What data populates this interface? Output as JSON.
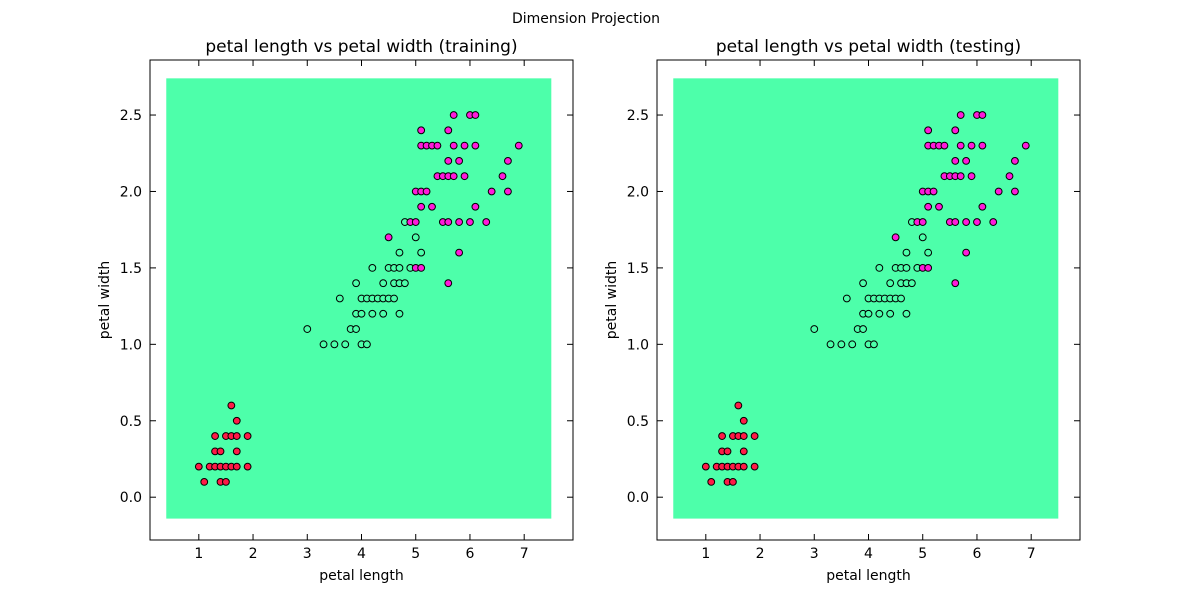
{
  "figure": {
    "title": "Dimension Projection",
    "background_color": "#ffffff",
    "region_color": "#4dffaa"
  },
  "class_colors": {
    "setosa": "#ff1a47",
    "versicolor": "#4dffaa",
    "virginica": "#ff1adb"
  },
  "chart_data": [
    {
      "type": "scatter",
      "title": "petal length vs  petal width (training)",
      "xlabel": "petal length",
      "ylabel": "petal width",
      "xlim": [
        0.1,
        7.9
      ],
      "ylim": [
        -0.28,
        2.86
      ],
      "xticks": [
        1,
        2,
        3,
        4,
        5,
        6,
        7
      ],
      "yticks": [
        0.0,
        0.5,
        1.0,
        1.5,
        2.0,
        2.5
      ],
      "xtick_labels": [
        "1",
        "2",
        "3",
        "4",
        "5",
        "6",
        "7"
      ],
      "ytick_labels": [
        "0.0",
        "0.5",
        "1.0",
        "1.5",
        "2.0",
        "2.5"
      ],
      "grid": false,
      "decision_region": {
        "x": [
          0.4,
          7.5
        ],
        "y": [
          -0.14,
          2.74
        ],
        "class": "versicolor"
      },
      "series": [
        {
          "class": "setosa",
          "points": [
            [
              1.0,
              0.2
            ],
            [
              1.1,
              0.1
            ],
            [
              1.2,
              0.2
            ],
            [
              1.3,
              0.2
            ],
            [
              1.3,
              0.3
            ],
            [
              1.3,
              0.4
            ],
            [
              1.4,
              0.1
            ],
            [
              1.4,
              0.2
            ],
            [
              1.4,
              0.3
            ],
            [
              1.5,
              0.1
            ],
            [
              1.5,
              0.2
            ],
            [
              1.5,
              0.4
            ],
            [
              1.6,
              0.2
            ],
            [
              1.6,
              0.4
            ],
            [
              1.6,
              0.6
            ],
            [
              1.7,
              0.2
            ],
            [
              1.7,
              0.3
            ],
            [
              1.7,
              0.4
            ],
            [
              1.7,
              0.5
            ],
            [
              1.9,
              0.2
            ],
            [
              1.9,
              0.4
            ]
          ]
        },
        {
          "class": "versicolor",
          "points": [
            [
              3.0,
              1.1
            ],
            [
              3.3,
              1.0
            ],
            [
              3.5,
              1.0
            ],
            [
              3.6,
              1.3
            ],
            [
              3.7,
              1.0
            ],
            [
              3.8,
              1.1
            ],
            [
              3.9,
              1.1
            ],
            [
              3.9,
              1.2
            ],
            [
              3.9,
              1.4
            ],
            [
              4.0,
              1.0
            ],
            [
              4.0,
              1.2
            ],
            [
              4.0,
              1.3
            ],
            [
              4.1,
              1.0
            ],
            [
              4.1,
              1.3
            ],
            [
              4.2,
              1.2
            ],
            [
              4.2,
              1.3
            ],
            [
              4.2,
              1.5
            ],
            [
              4.3,
              1.3
            ],
            [
              4.4,
              1.2
            ],
            [
              4.4,
              1.3
            ],
            [
              4.4,
              1.4
            ],
            [
              4.5,
              1.3
            ],
            [
              4.5,
              1.5
            ],
            [
              4.6,
              1.3
            ],
            [
              4.6,
              1.4
            ],
            [
              4.6,
              1.5
            ],
            [
              4.7,
              1.2
            ],
            [
              4.7,
              1.4
            ],
            [
              4.7,
              1.5
            ],
            [
              4.7,
              1.6
            ],
            [
              4.8,
              1.4
            ],
            [
              4.8,
              1.8
            ],
            [
              4.9,
              1.5
            ],
            [
              5.0,
              1.7
            ],
            [
              5.1,
              1.6
            ]
          ]
        },
        {
          "class": "virginica",
          "points": [
            [
              4.5,
              1.7
            ],
            [
              4.9,
              1.8
            ],
            [
              5.0,
              1.5
            ],
            [
              5.0,
              1.8
            ],
            [
              5.0,
              2.0
            ],
            [
              5.1,
              1.5
            ],
            [
              5.1,
              1.9
            ],
            [
              5.1,
              2.0
            ],
            [
              5.1,
              2.3
            ],
            [
              5.1,
              2.4
            ],
            [
              5.2,
              2.0
            ],
            [
              5.2,
              2.3
            ],
            [
              5.3,
              1.9
            ],
            [
              5.3,
              2.3
            ],
            [
              5.4,
              2.1
            ],
            [
              5.4,
              2.3
            ],
            [
              5.5,
              1.8
            ],
            [
              5.5,
              2.1
            ],
            [
              5.6,
              1.4
            ],
            [
              5.6,
              1.8
            ],
            [
              5.6,
              2.1
            ],
            [
              5.6,
              2.2
            ],
            [
              5.6,
              2.4
            ],
            [
              5.7,
              2.1
            ],
            [
              5.7,
              2.3
            ],
            [
              5.7,
              2.5
            ],
            [
              5.8,
              1.6
            ],
            [
              5.8,
              1.8
            ],
            [
              5.8,
              2.2
            ],
            [
              5.9,
              2.1
            ],
            [
              5.9,
              2.3
            ],
            [
              6.0,
              1.8
            ],
            [
              6.0,
              2.5
            ],
            [
              6.1,
              1.9
            ],
            [
              6.1,
              2.3
            ],
            [
              6.1,
              2.5
            ],
            [
              6.3,
              1.8
            ],
            [
              6.4,
              2.0
            ],
            [
              6.6,
              2.1
            ],
            [
              6.7,
              2.0
            ],
            [
              6.7,
              2.2
            ],
            [
              6.9,
              2.3
            ]
          ]
        }
      ]
    },
    {
      "type": "scatter",
      "title": "petal length vs  petal width (testing)",
      "xlabel": "petal length",
      "ylabel": "petal width",
      "xlim": [
        0.1,
        7.9
      ],
      "ylim": [
        -0.28,
        2.86
      ],
      "xticks": [
        1,
        2,
        3,
        4,
        5,
        6,
        7
      ],
      "yticks": [
        0.0,
        0.5,
        1.0,
        1.5,
        2.0,
        2.5
      ],
      "xtick_labels": [
        "1",
        "2",
        "3",
        "4",
        "5",
        "6",
        "7"
      ],
      "ytick_labels": [
        "0.0",
        "0.5",
        "1.0",
        "1.5",
        "2.0",
        "2.5"
      ],
      "grid": false,
      "decision_region": {
        "x": [
          0.4,
          7.5
        ],
        "y": [
          -0.14,
          2.74
        ],
        "class": "versicolor"
      },
      "series": [
        {
          "class": "setosa",
          "points": [
            [
              1.0,
              0.2
            ],
            [
              1.1,
              0.1
            ],
            [
              1.2,
              0.2
            ],
            [
              1.3,
              0.2
            ],
            [
              1.3,
              0.3
            ],
            [
              1.3,
              0.4
            ],
            [
              1.4,
              0.1
            ],
            [
              1.4,
              0.2
            ],
            [
              1.4,
              0.3
            ],
            [
              1.5,
              0.1
            ],
            [
              1.5,
              0.2
            ],
            [
              1.5,
              0.4
            ],
            [
              1.6,
              0.2
            ],
            [
              1.6,
              0.4
            ],
            [
              1.6,
              0.6
            ],
            [
              1.7,
              0.2
            ],
            [
              1.7,
              0.3
            ],
            [
              1.7,
              0.4
            ],
            [
              1.7,
              0.5
            ],
            [
              1.9,
              0.2
            ],
            [
              1.9,
              0.4
            ]
          ]
        },
        {
          "class": "versicolor",
          "points": [
            [
              3.0,
              1.1
            ],
            [
              3.3,
              1.0
            ],
            [
              3.5,
              1.0
            ],
            [
              3.6,
              1.3
            ],
            [
              3.7,
              1.0
            ],
            [
              3.8,
              1.1
            ],
            [
              3.9,
              1.1
            ],
            [
              3.9,
              1.2
            ],
            [
              3.9,
              1.4
            ],
            [
              4.0,
              1.0
            ],
            [
              4.0,
              1.2
            ],
            [
              4.0,
              1.3
            ],
            [
              4.1,
              1.0
            ],
            [
              4.1,
              1.3
            ],
            [
              4.2,
              1.2
            ],
            [
              4.2,
              1.3
            ],
            [
              4.2,
              1.5
            ],
            [
              4.3,
              1.3
            ],
            [
              4.4,
              1.2
            ],
            [
              4.4,
              1.3
            ],
            [
              4.4,
              1.4
            ],
            [
              4.5,
              1.3
            ],
            [
              4.5,
              1.5
            ],
            [
              4.6,
              1.3
            ],
            [
              4.6,
              1.4
            ],
            [
              4.6,
              1.5
            ],
            [
              4.7,
              1.2
            ],
            [
              4.7,
              1.4
            ],
            [
              4.7,
              1.5
            ],
            [
              4.7,
              1.6
            ],
            [
              4.8,
              1.4
            ],
            [
              4.8,
              1.8
            ],
            [
              4.9,
              1.5
            ],
            [
              5.0,
              1.7
            ],
            [
              5.1,
              1.6
            ]
          ]
        },
        {
          "class": "virginica",
          "points": [
            [
              4.5,
              1.7
            ],
            [
              4.9,
              1.8
            ],
            [
              5.0,
              1.5
            ],
            [
              5.0,
              1.8
            ],
            [
              5.0,
              2.0
            ],
            [
              5.1,
              1.5
            ],
            [
              5.1,
              1.9
            ],
            [
              5.1,
              2.0
            ],
            [
              5.1,
              2.3
            ],
            [
              5.1,
              2.4
            ],
            [
              5.2,
              2.0
            ],
            [
              5.2,
              2.3
            ],
            [
              5.3,
              1.9
            ],
            [
              5.3,
              2.3
            ],
            [
              5.4,
              2.1
            ],
            [
              5.4,
              2.3
            ],
            [
              5.5,
              1.8
            ],
            [
              5.5,
              2.1
            ],
            [
              5.6,
              1.4
            ],
            [
              5.6,
              1.8
            ],
            [
              5.6,
              2.1
            ],
            [
              5.6,
              2.2
            ],
            [
              5.6,
              2.4
            ],
            [
              5.7,
              2.1
            ],
            [
              5.7,
              2.3
            ],
            [
              5.7,
              2.5
            ],
            [
              5.8,
              1.6
            ],
            [
              5.8,
              1.8
            ],
            [
              5.8,
              2.2
            ],
            [
              5.9,
              2.1
            ],
            [
              5.9,
              2.3
            ],
            [
              6.0,
              1.8
            ],
            [
              6.0,
              2.5
            ],
            [
              6.1,
              1.9
            ],
            [
              6.1,
              2.3
            ],
            [
              6.1,
              2.5
            ],
            [
              6.3,
              1.8
            ],
            [
              6.4,
              2.0
            ],
            [
              6.6,
              2.1
            ],
            [
              6.7,
              2.0
            ],
            [
              6.7,
              2.2
            ],
            [
              6.9,
              2.3
            ]
          ]
        }
      ]
    }
  ]
}
